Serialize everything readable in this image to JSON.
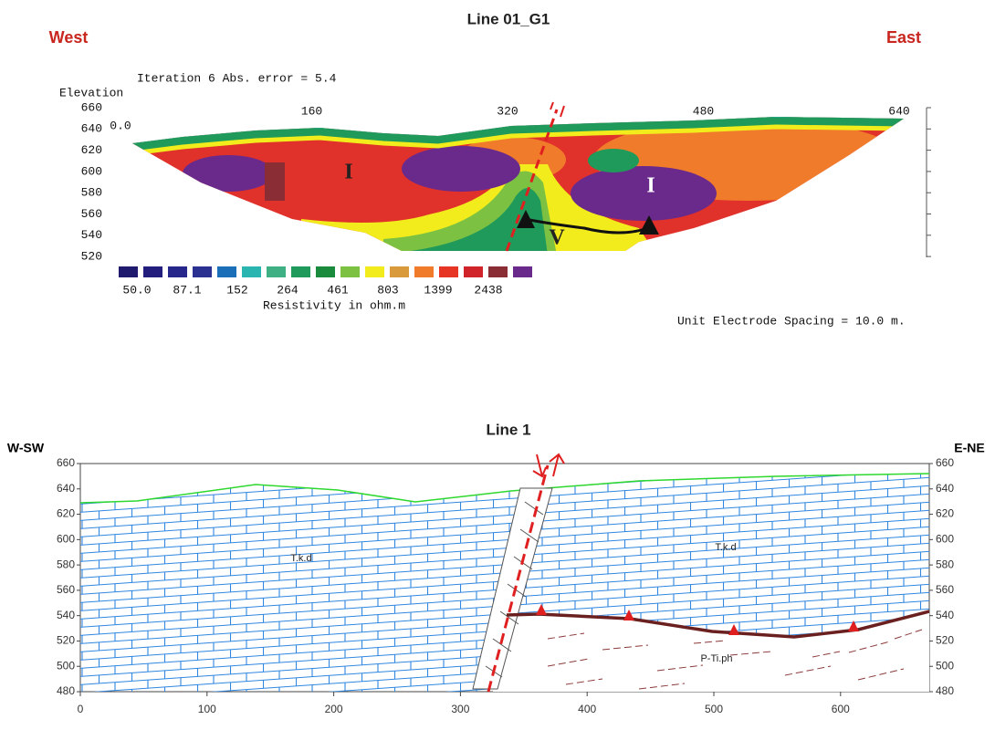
{
  "top": {
    "title": "Line 01_G1",
    "left_label": "West",
    "right_label": "East",
    "iteration": "Iteration 6 Abs. error = 5.4",
    "y_axis_title": "Elevation",
    "yticks": [
      660,
      640,
      620,
      600,
      580,
      560,
      540,
      520
    ],
    "xticks": [
      "0.0",
      160,
      320,
      480,
      640
    ],
    "zone_labels": [
      "I",
      "I",
      "V"
    ],
    "colorbar": {
      "colors": [
        "#1f1a6e",
        "#231d7d",
        "#27268a",
        "#2a3190",
        "#1a6fb8",
        "#2bb5b0",
        "#3fb083",
        "#1f9a5a",
        "#1a8a3c",
        "#7cc142",
        "#f2ec1c",
        "#d99a3c",
        "#f07b2a",
        "#e63524",
        "#d1232a",
        "#8b2d34",
        "#6a2a8c"
      ],
      "labels": [
        "50.0",
        "87.1",
        "152",
        "264",
        "461",
        "803",
        "1399",
        "2438"
      ],
      "title": "Resistivity in ohm.m"
    },
    "spacing_note": "Unit Electrode Spacing = 10.0 m."
  },
  "bottom": {
    "title": "Line 1",
    "left_label": "W-SW",
    "right_label": "E-NE",
    "yticks": [
      660,
      640,
      620,
      600,
      580,
      560,
      540,
      520,
      500,
      480
    ],
    "xticks": [
      0,
      100,
      200,
      300,
      400,
      500,
      600
    ],
    "unit_labels": [
      "T.k.d",
      "T.k.d",
      "P-Ti.ph"
    ]
  }
}
